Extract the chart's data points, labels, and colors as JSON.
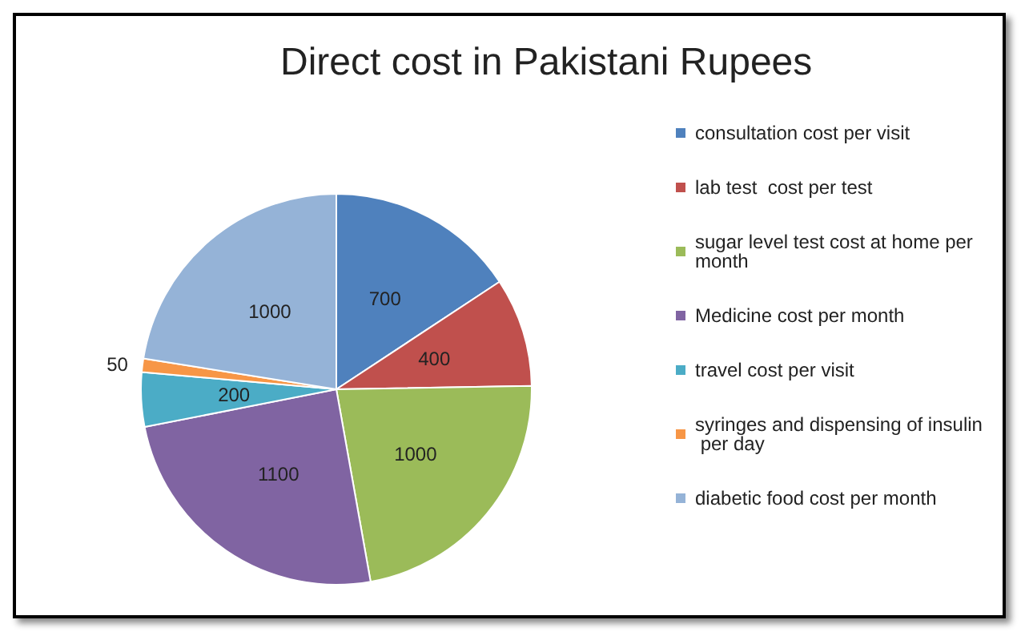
{
  "chart_data": {
    "type": "pie",
    "title": "Direct cost in Pakistani Rupees",
    "categories": [
      "consultation cost per visit",
      "lab test  cost per test",
      "sugar level test cost at home per month",
      "Medicine cost per month",
      "travel cost per visit",
      "syringes and dispensing of insulin per day",
      "diabetic food cost per month"
    ],
    "values": [
      700,
      400,
      1000,
      1100,
      200,
      50,
      1000
    ],
    "colors": [
      "#4f81bd",
      "#c0504d",
      "#9bbb59",
      "#8064a2",
      "#4bacc6",
      "#f79646",
      "#95b3d7"
    ],
    "data_labels": true,
    "legend": "right"
  }
}
